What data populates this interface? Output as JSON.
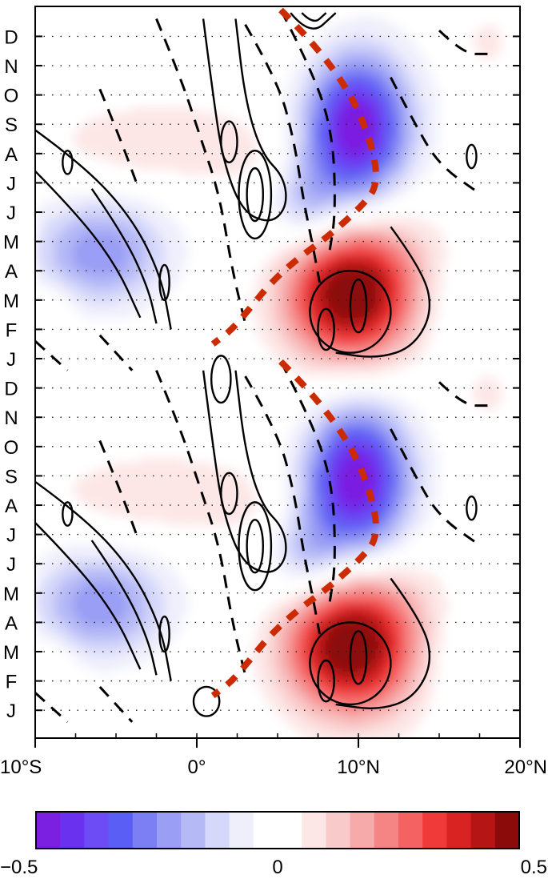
{
  "chart_data": {
    "type": "heatmap",
    "title": "",
    "xlabel": "",
    "ylabel": "",
    "x_range": [
      -10,
      20
    ],
    "x_ticks": [
      {
        "value": -10,
        "label": "10°S"
      },
      {
        "value": 0,
        "label": "0°"
      },
      {
        "value": 10,
        "label": "10°N"
      },
      {
        "value": 20,
        "label": "20°N"
      }
    ],
    "y_months_bottom_to_top": [
      "J",
      "F",
      "M",
      "A",
      "M",
      "J",
      "J",
      "A",
      "S",
      "O",
      "N",
      "D",
      "J",
      "F",
      "M",
      "A",
      "M",
      "J",
      "J",
      "A",
      "S",
      "O",
      "N",
      "D"
    ],
    "grid": "dotted",
    "colorbar": {
      "min": -0.5,
      "max": 0.5,
      "tick_labels": [
        "−0.5",
        "0",
        "0.5"
      ],
      "colors": [
        "#7b1fe0",
        "#6a32ef",
        "#6e4cf5",
        "#5a5ef5",
        "#7b7ff3",
        "#9a9ef4",
        "#b5b9f6",
        "#d6d8fa",
        "#efeffc",
        "#ffffff",
        "#ffffff",
        "#fde6e6",
        "#f9caca",
        "#f7aaaa",
        "#f58585",
        "#f46262",
        "#f03a3a",
        "#d92222",
        "#b51515",
        "#8b0a0a"
      ]
    },
    "shading_blobs": [
      {
        "lat": 9.8,
        "month": 20.0,
        "slat": 2.0,
        "smon": 1.6,
        "value": -0.42
      },
      {
        "lat": 8.0,
        "month": 17.8,
        "slat": 3.6,
        "smon": 1.9,
        "value": -0.16
      },
      {
        "lat": 12.0,
        "month": 19.4,
        "slat": 2.6,
        "smon": 2.8,
        "value": -0.08
      },
      {
        "lat": 9.5,
        "month": 14.2,
        "slat": 2.8,
        "smon": 1.5,
        "value": 0.44
      },
      {
        "lat": 11.0,
        "month": 15.4,
        "slat": 3.6,
        "smon": 2.4,
        "value": 0.18
      },
      {
        "lat": -6.0,
        "month": 15.6,
        "slat": 3.0,
        "smon": 1.3,
        "value": -0.24
      },
      {
        "lat": -2.0,
        "month": 19.4,
        "slat": 5.0,
        "smon": 1.0,
        "value": 0.1
      },
      {
        "lat": 4.0,
        "month": 18.4,
        "slat": 2.2,
        "smon": 1.2,
        "value": 0.07
      },
      {
        "lat": 15.0,
        "month": 14.0,
        "slat": 3.0,
        "smon": 1.4,
        "value": -0.08
      },
      {
        "lat": 18.0,
        "month": 22.8,
        "slat": 1.0,
        "smon": 0.6,
        "value": 0.08
      },
      {
        "lat": -9.0,
        "month": 13.6,
        "slat": 1.0,
        "smon": 0.7,
        "value": 0.07
      },
      {
        "lat": 6.8,
        "month": 17.2,
        "slat": 1.4,
        "smon": 1.0,
        "value": -0.1
      },
      {
        "lat": 9.8,
        "month": 8.0,
        "slat": 2.0,
        "smon": 1.6,
        "value": -0.42
      },
      {
        "lat": 8.0,
        "month": 5.8,
        "slat": 3.6,
        "smon": 1.9,
        "value": -0.16
      },
      {
        "lat": 12.0,
        "month": 7.4,
        "slat": 2.6,
        "smon": 2.8,
        "value": -0.08
      },
      {
        "lat": 9.5,
        "month": 2.2,
        "slat": 2.8,
        "smon": 1.5,
        "value": 0.44
      },
      {
        "lat": 11.0,
        "month": 3.4,
        "slat": 3.6,
        "smon": 2.4,
        "value": 0.18
      },
      {
        "lat": -6.0,
        "month": 3.6,
        "slat": 3.0,
        "smon": 1.3,
        "value": -0.24
      },
      {
        "lat": -2.0,
        "month": 7.4,
        "slat": 5.0,
        "smon": 1.0,
        "value": 0.1
      },
      {
        "lat": 4.0,
        "month": 6.4,
        "slat": 2.2,
        "smon": 1.2,
        "value": 0.07
      },
      {
        "lat": 15.0,
        "month": 2.0,
        "slat": 3.0,
        "smon": 1.4,
        "value": -0.08
      },
      {
        "lat": 18.0,
        "month": 10.8,
        "slat": 1.0,
        "smon": 0.6,
        "value": 0.08
      },
      {
        "lat": -9.0,
        "month": 1.6,
        "slat": 1.0,
        "smon": 0.7,
        "value": 0.07
      },
      {
        "lat": 6.8,
        "month": 5.2,
        "slat": 1.4,
        "smon": 1.0,
        "value": -0.1
      }
    ],
    "solid_contours": [
      {
        "lat": 3.6,
        "month": 17.6,
        "rlat": 0.5,
        "rmon": 0.9
      },
      {
        "lat": 3.6,
        "month": 17.6,
        "rlat": 1.0,
        "rmon": 1.5
      },
      {
        "lat": 10.0,
        "month": 13.8,
        "rlat": 0.5,
        "rmon": 0.9
      },
      {
        "lat": 8.0,
        "month": 13.0,
        "rlat": 0.5,
        "rmon": 0.7
      },
      {
        "lat": 9.5,
        "month": 13.6,
        "rlat": 2.5,
        "rmon": 1.4
      },
      {
        "lat": 2.0,
        "month": 19.4,
        "rlat": 0.5,
        "rmon": 0.7
      },
      {
        "lat": -2.0,
        "month": 14.6,
        "rlat": 0.3,
        "rmon": 0.6
      },
      {
        "lat": -8.0,
        "month": 18.7,
        "rlat": 0.3,
        "rmon": 0.4
      },
      {
        "lat": 17.0,
        "month": 18.9,
        "rlat": 0.3,
        "rmon": 0.4
      },
      {
        "lat": 3.6,
        "month": 5.6,
        "rlat": 0.5,
        "rmon": 0.9
      },
      {
        "lat": 3.6,
        "month": 5.6,
        "rlat": 1.0,
        "rmon": 1.5
      },
      {
        "lat": 10.0,
        "month": 1.8,
        "rlat": 0.5,
        "rmon": 0.9
      },
      {
        "lat": 8.0,
        "month": 1.0,
        "rlat": 0.5,
        "rmon": 0.7
      },
      {
        "lat": 9.5,
        "month": 1.6,
        "rlat": 2.5,
        "rmon": 1.4
      },
      {
        "lat": 2.0,
        "month": 7.4,
        "rlat": 0.5,
        "rmon": 0.7
      },
      {
        "lat": -2.0,
        "month": 2.6,
        "rlat": 0.3,
        "rmon": 0.6
      },
      {
        "lat": -8.0,
        "month": 6.7,
        "rlat": 0.3,
        "rmon": 0.4
      },
      {
        "lat": 17.0,
        "month": 6.9,
        "rlat": 0.3,
        "rmon": 0.4
      },
      {
        "lat": 0.6,
        "month": 0.3,
        "rlat": 0.8,
        "rmon": 0.5
      },
      {
        "lat": 1.5,
        "month": 11.3,
        "rlat": 0.6,
        "rmon": 0.8
      }
    ],
    "solid_lines": [
      [
        [
          -10,
          19.8
        ],
        [
          -7,
          18.6
        ],
        [
          -4,
          16.8
        ],
        [
          -2.2,
          14.8
        ],
        [
          -1.6,
          13.0
        ]
      ],
      [
        [
          -10,
          18.4
        ],
        [
          -7.5,
          17.0
        ],
        [
          -5,
          15.2
        ],
        [
          -3.5,
          13.4
        ]
      ],
      [
        [
          -6.5,
          17.8
        ],
        [
          -4.5,
          16.2
        ],
        [
          -3,
          14.4
        ],
        [
          -2.5,
          13.2
        ]
      ],
      [
        [
          0.4,
          23.6
        ],
        [
          1.0,
          21.0
        ],
        [
          1.6,
          18.8
        ],
        [
          2.8,
          17.0
        ],
        [
          4.6,
          16.6
        ],
        [
          5.6,
          17.2
        ],
        [
          5.4,
          18.2
        ],
        [
          4.0,
          19.0
        ],
        [
          3.0,
          20.8
        ],
        [
          2.4,
          23.6
        ]
      ],
      [
        [
          6.5,
          23.8
        ],
        [
          7.2,
          23.4
        ],
        [
          8.0,
          23.8
        ]
      ],
      [
        [
          5.8,
          23.8
        ],
        [
          7.0,
          23.0
        ],
        [
          8.6,
          23.8
        ]
      ],
      [
        [
          12,
          16.5
        ],
        [
          14,
          15.0
        ],
        [
          14.6,
          13.6
        ],
        [
          13.4,
          12.4
        ],
        [
          11.2,
          12.0
        ],
        [
          8.6,
          12.2
        ]
      ],
      [
        [
          -10,
          7.8
        ],
        [
          -7,
          6.6
        ],
        [
          -4,
          4.8
        ],
        [
          -2.2,
          2.8
        ],
        [
          -1.6,
          1.0
        ]
      ],
      [
        [
          -10,
          6.4
        ],
        [
          -7.5,
          5.0
        ],
        [
          -5,
          3.2
        ],
        [
          -3.5,
          1.4
        ]
      ],
      [
        [
          -6.5,
          5.8
        ],
        [
          -4.5,
          4.2
        ],
        [
          -3,
          2.4
        ],
        [
          -2.5,
          1.2
        ]
      ],
      [
        [
          0.4,
          11.6
        ],
        [
          1.0,
          9.0
        ],
        [
          1.6,
          6.8
        ],
        [
          2.8,
          5.0
        ],
        [
          4.6,
          4.6
        ],
        [
          5.6,
          5.2
        ],
        [
          5.4,
          6.2
        ],
        [
          4.0,
          7.0
        ],
        [
          3.0,
          8.8
        ],
        [
          2.4,
          11.6
        ]
      ],
      [
        [
          12,
          4.5
        ],
        [
          14,
          3.0
        ],
        [
          14.6,
          1.6
        ],
        [
          13.4,
          0.4
        ],
        [
          11.2,
          0.0
        ],
        [
          8.6,
          0.2
        ]
      ]
    ],
    "dashed_lines": [
      [
        [
          5.2,
          23.9
        ],
        [
          7.0,
          22.0
        ],
        [
          8.4,
          19.8
        ],
        [
          8.6,
          17.0
        ],
        [
          8.2,
          15.6
        ]
      ],
      [
        [
          3.0,
          23.4
        ],
        [
          5.0,
          21.5
        ],
        [
          6.0,
          19.5
        ],
        [
          6.6,
          17.4
        ],
        [
          7.2,
          15.8
        ],
        [
          7.6,
          14.6
        ]
      ],
      [
        [
          -2.5,
          23.6
        ],
        [
          -1.0,
          21.6
        ],
        [
          0.2,
          19.6
        ],
        [
          1.4,
          17.6
        ],
        [
          2.2,
          15.0
        ],
        [
          3.0,
          13.2
        ]
      ],
      [
        [
          -6.0,
          21.2
        ],
        [
          -4.8,
          19.6
        ],
        [
          -3.6,
          17.8
        ]
      ],
      [
        [
          12.0,
          21.6
        ],
        [
          13.5,
          20.0
        ],
        [
          15.0,
          18.6
        ],
        [
          17.6,
          17.6
        ]
      ],
      [
        [
          15.0,
          23.2
        ],
        [
          16.5,
          22.4
        ],
        [
          18.0,
          22.4
        ]
      ],
      [
        [
          -10,
          12.6
        ],
        [
          -8.0,
          11.6
        ]
      ],
      [
        [
          -6.0,
          12.8
        ],
        [
          -4.0,
          11.6
        ]
      ],
      [
        [
          5.2,
          11.9
        ],
        [
          7.0,
          10.0
        ],
        [
          8.4,
          7.8
        ],
        [
          8.6,
          5.0
        ],
        [
          8.2,
          3.6
        ]
      ],
      [
        [
          3.0,
          11.4
        ],
        [
          5.0,
          9.5
        ],
        [
          6.0,
          7.5
        ],
        [
          6.6,
          5.4
        ],
        [
          7.2,
          3.8
        ],
        [
          7.6,
          2.6
        ]
      ],
      [
        [
          -2.5,
          11.6
        ],
        [
          -1.0,
          9.6
        ],
        [
          0.2,
          7.6
        ],
        [
          1.4,
          5.6
        ],
        [
          2.2,
          3.0
        ],
        [
          3.0,
          1.2
        ]
      ],
      [
        [
          -6.0,
          9.2
        ],
        [
          -4.8,
          7.6
        ],
        [
          -3.6,
          5.8
        ]
      ],
      [
        [
          12.0,
          9.6
        ],
        [
          13.5,
          8.0
        ],
        [
          15.0,
          6.6
        ],
        [
          17.6,
          5.6
        ]
      ],
      [
        [
          15.0,
          11.2
        ],
        [
          16.5,
          10.4
        ],
        [
          18.0,
          10.4
        ]
      ],
      [
        [
          -10,
          0.6
        ],
        [
          -8.0,
          -0.4
        ]
      ],
      [
        [
          -6.0,
          0.8
        ],
        [
          -4.0,
          -0.4
        ]
      ]
    ],
    "red_dashed_line": [
      [
        [
          5.2,
          23.9
        ],
        [
          7.2,
          22.8
        ],
        [
          9.6,
          21.0
        ],
        [
          10.9,
          19.2
        ],
        [
          11.2,
          17.9
        ],
        [
          10.2,
          17.2
        ],
        [
          8.2,
          16.2
        ],
        [
          6.2,
          15.4
        ],
        [
          4.6,
          14.6
        ],
        [
          3.4,
          13.8
        ],
        [
          2.2,
          13.0
        ],
        [
          1.0,
          12.5
        ]
      ],
      [
        [
          5.2,
          11.9
        ],
        [
          7.2,
          10.8
        ],
        [
          9.6,
          9.0
        ],
        [
          10.9,
          7.2
        ],
        [
          11.2,
          5.9
        ],
        [
          10.2,
          5.2
        ],
        [
          8.2,
          4.2
        ],
        [
          6.2,
          3.4
        ],
        [
          4.6,
          2.6
        ],
        [
          3.4,
          1.8
        ],
        [
          2.2,
          1.0
        ],
        [
          1.0,
          0.5
        ]
      ]
    ]
  }
}
